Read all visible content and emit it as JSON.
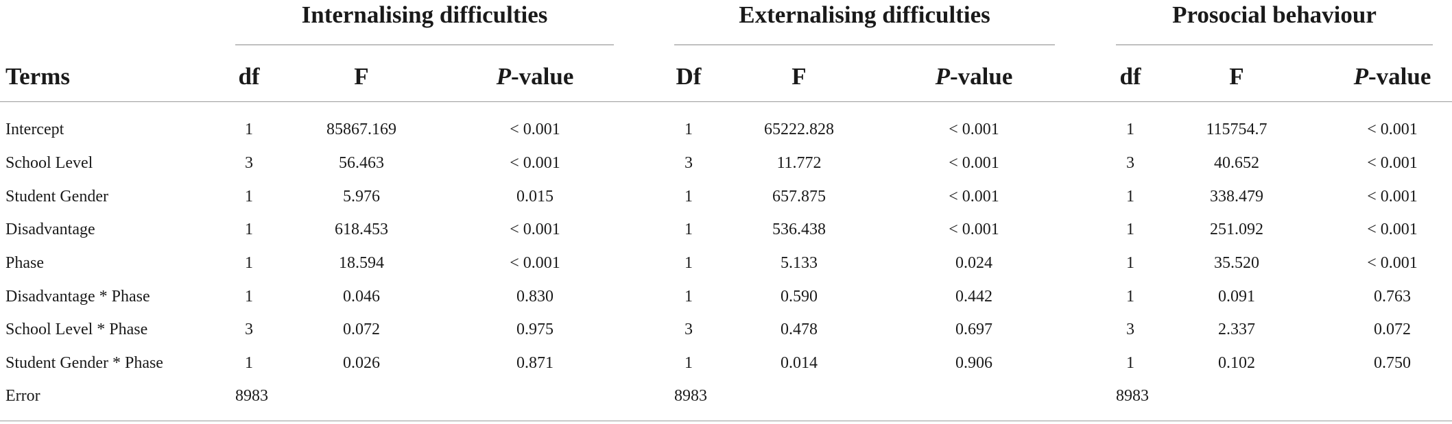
{
  "groups": [
    {
      "title": "Internalising difficulties",
      "df_label": "df",
      "f_label": "F",
      "p_label_italic": "P",
      "p_label_rest": "-value"
    },
    {
      "title": "Externalising difficulties",
      "df_label": "Df",
      "f_label": "F",
      "p_label_italic": "P",
      "p_label_rest": "-value"
    },
    {
      "title": "Prosocial behaviour",
      "df_label": "df",
      "f_label": "F",
      "p_label_italic": "P",
      "p_label_rest": "-value"
    }
  ],
  "terms_label": "Terms",
  "rows": [
    {
      "term": "Intercept",
      "cells": [
        [
          "1",
          "85867.169",
          "< 0.001"
        ],
        [
          "1",
          "65222.828",
          "< 0.001"
        ],
        [
          "1",
          "115754.7",
          "< 0.001"
        ]
      ]
    },
    {
      "term": "School Level",
      "cells": [
        [
          "3",
          "56.463",
          "< 0.001"
        ],
        [
          "3",
          "11.772",
          "< 0.001"
        ],
        [
          "3",
          "40.652",
          "< 0.001"
        ]
      ]
    },
    {
      "term": "Student Gender",
      "cells": [
        [
          "1",
          "5.976",
          "0.015"
        ],
        [
          "1",
          "657.875",
          "< 0.001"
        ],
        [
          "1",
          "338.479",
          "< 0.001"
        ]
      ]
    },
    {
      "term": "Disadvantage",
      "cells": [
        [
          "1",
          "618.453",
          "< 0.001"
        ],
        [
          "1",
          "536.438",
          "< 0.001"
        ],
        [
          "1",
          "251.092",
          "< 0.001"
        ]
      ]
    },
    {
      "term": "Phase",
      "cells": [
        [
          "1",
          "18.594",
          "< 0.001"
        ],
        [
          "1",
          "5.133",
          "0.024"
        ],
        [
          "1",
          "35.520",
          "< 0.001"
        ]
      ]
    },
    {
      "term": "Disadvantage * Phase",
      "cells": [
        [
          "1",
          "0.046",
          "0.830"
        ],
        [
          "1",
          "0.590",
          "0.442"
        ],
        [
          "1",
          "0.091",
          "0.763"
        ]
      ]
    },
    {
      "term": "School Level * Phase",
      "cells": [
        [
          "3",
          "0.072",
          "0.975"
        ],
        [
          "3",
          "0.478",
          "0.697"
        ],
        [
          "3",
          "2.337",
          "0.072"
        ]
      ]
    },
    {
      "term": "Student Gender * Phase",
      "cells": [
        [
          "1",
          "0.026",
          "0.871"
        ],
        [
          "1",
          "0.014",
          "0.906"
        ],
        [
          "1",
          "0.102",
          "0.750"
        ]
      ]
    }
  ],
  "error_row": {
    "term": "Error",
    "cells": [
      "8983",
      "8983",
      "8983"
    ]
  }
}
